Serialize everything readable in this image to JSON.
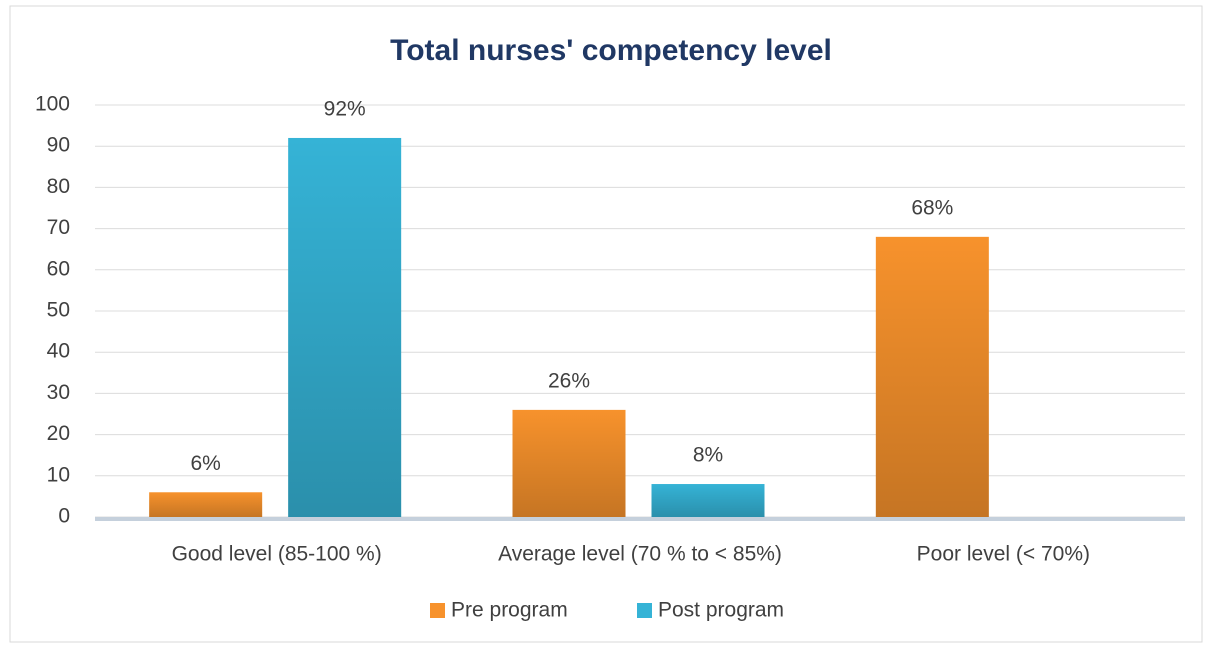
{
  "chart_data": {
    "type": "bar",
    "title": "Total nurses' competency level",
    "categories": [
      "Good level (85-100 %)",
      "Average level (70 % to < 85%)",
      "Poor level (< 70%)"
    ],
    "series": [
      {
        "name": "Pre program",
        "color": "#f7922c",
        "values": [
          6,
          26,
          68
        ],
        "value_labels": [
          "6%",
          "26%",
          "68%"
        ]
      },
      {
        "name": "Post program",
        "color": "#35b3d6",
        "values": [
          92,
          8,
          null
        ],
        "value_labels": [
          "92%",
          "8%",
          null
        ]
      }
    ],
    "ylim": [
      0,
      100
    ],
    "yticks": [
      0,
      10,
      20,
      30,
      40,
      50,
      60,
      70,
      80,
      90,
      100
    ],
    "grid": true,
    "legend": "bottom"
  }
}
